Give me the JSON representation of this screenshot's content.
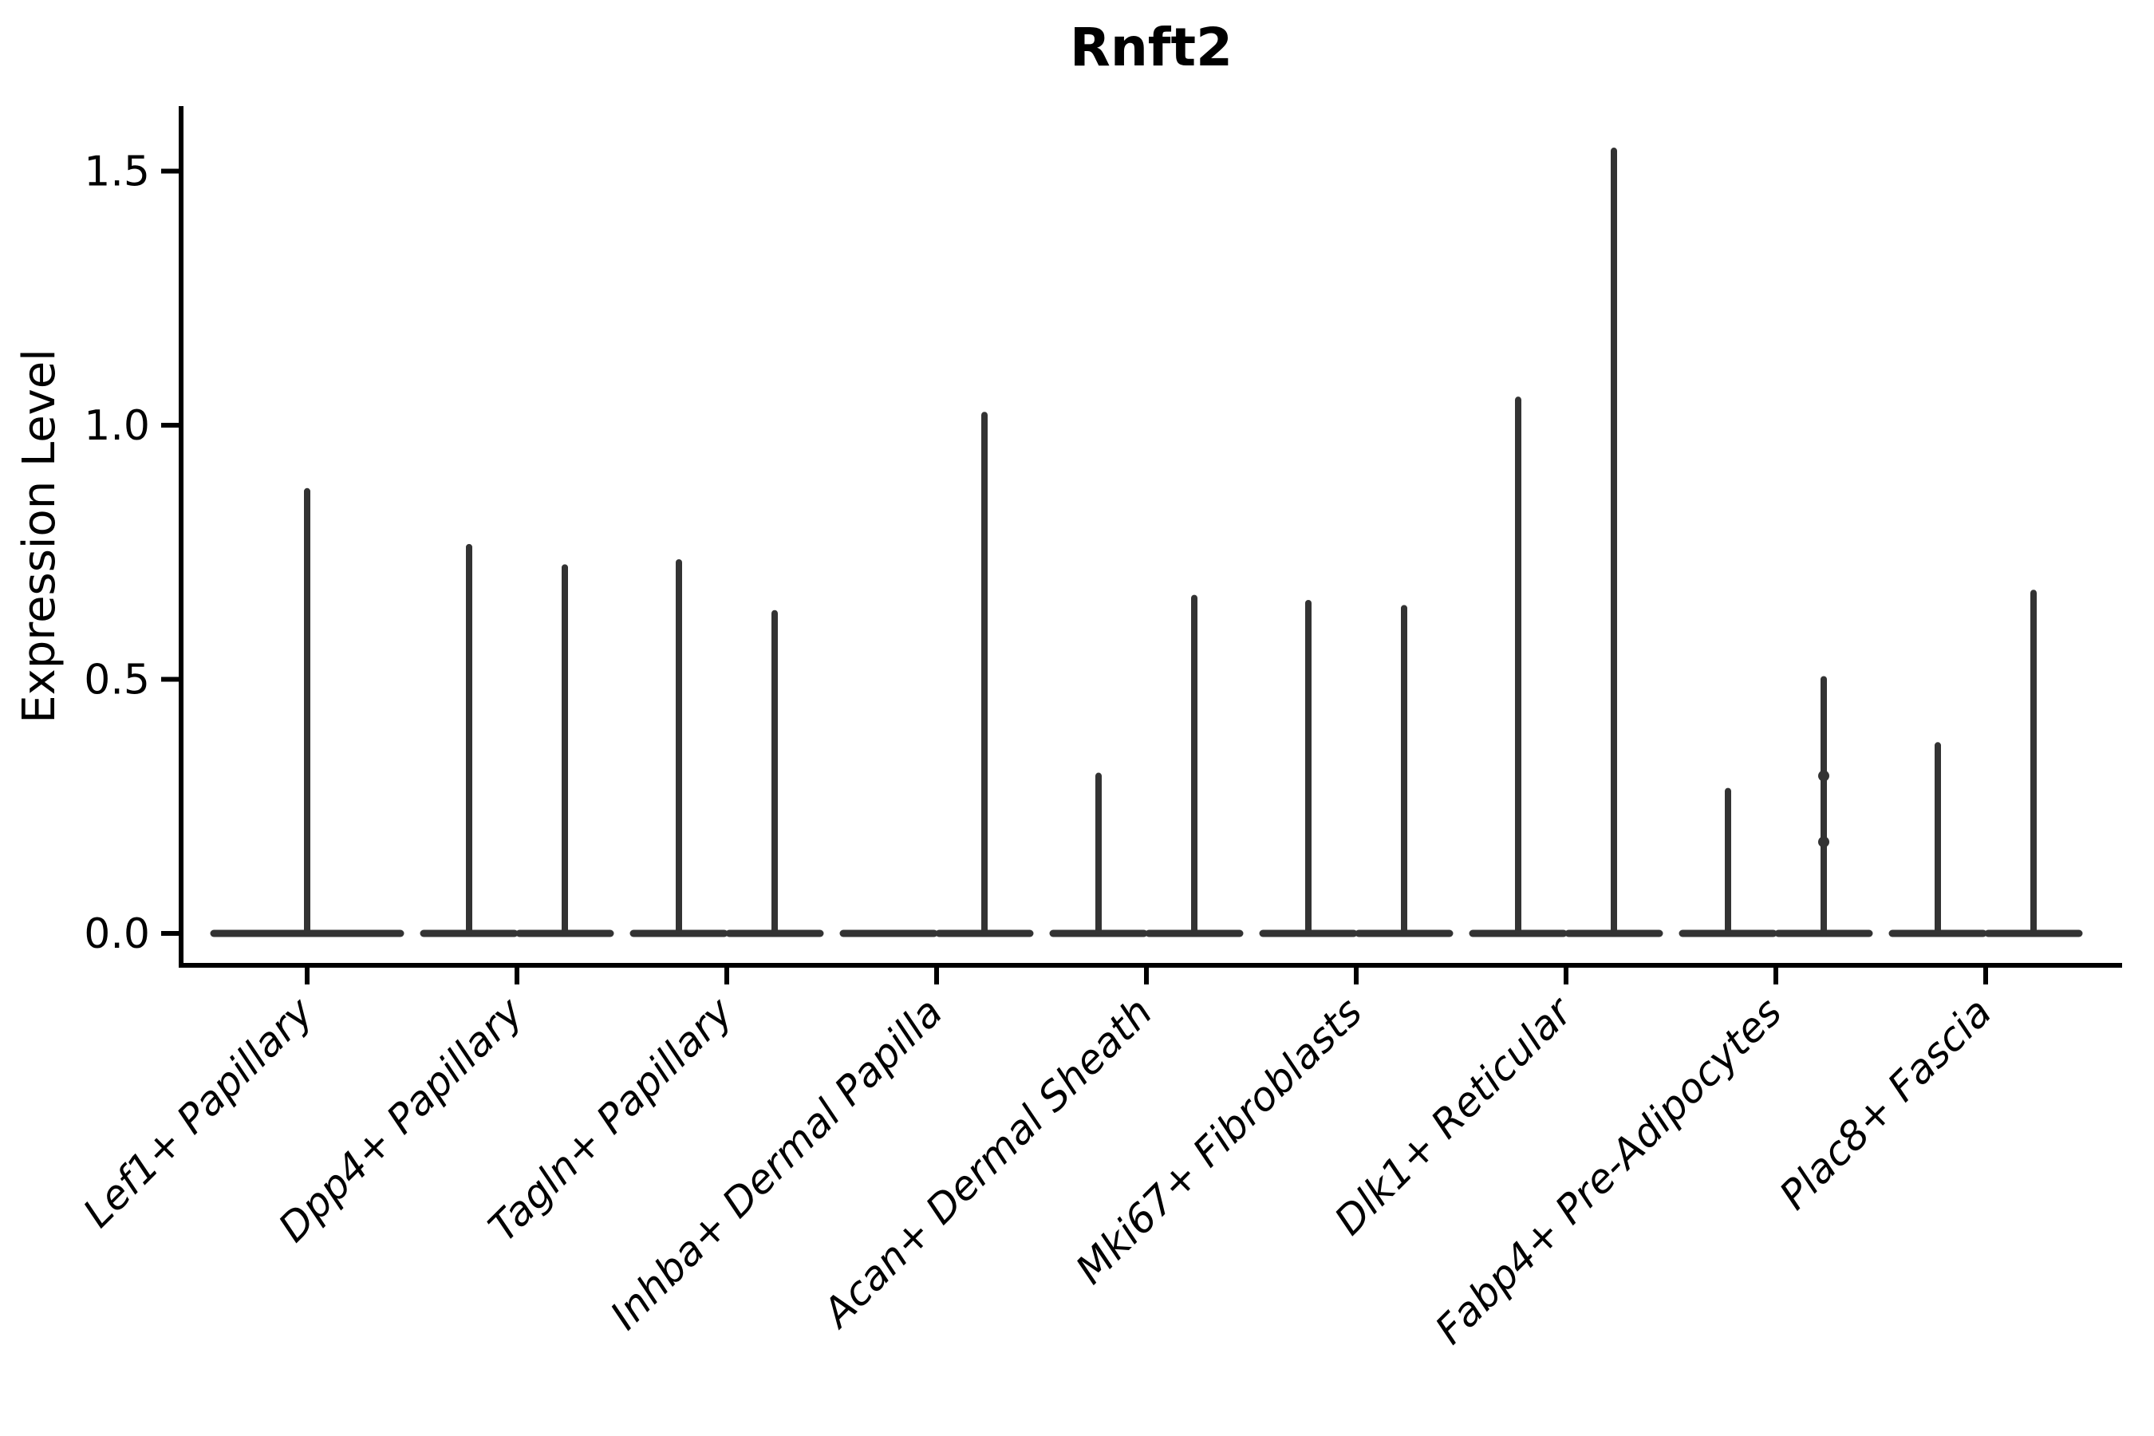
{
  "figure": {
    "title": "Rnft2",
    "ylabel": "Expression Level",
    "background_color": "#ffffff",
    "axis_color": "#000000",
    "violin_color": "#333333"
  },
  "chart_data": {
    "type": "violin",
    "title": "Rnft2",
    "xlabel": "",
    "ylabel": "Expression Level",
    "ylim": [
      -0.06,
      1.63
    ],
    "yticks": [
      0.0,
      0.5,
      1.0,
      1.5
    ],
    "ytick_labels": [
      "0.0",
      "0.5",
      "1.0",
      "1.5"
    ],
    "grid": false,
    "legend": "none",
    "xtick_rotation_deg": 45,
    "categories": [
      "Lef1+ Papillary",
      "Dpp4+ Papillary",
      "Tagln+ Papillary",
      "Inhba+ Dermal Papilla",
      "Acan+ Dermal Sheath",
      "Mki67+ Fibroblasts",
      "Dlk1+ Reticular",
      "Fabp4+ Pre-Adipocytes",
      "Plac8+ Fascia"
    ],
    "violins": [
      {
        "category": "Lef1+ Papillary",
        "shapes": [
          {
            "side": "full",
            "max": 0.87
          }
        ]
      },
      {
        "category": "Dpp4+ Papillary",
        "shapes": [
          {
            "side": "left",
            "max": 0.76
          },
          {
            "side": "right",
            "max": 0.72
          }
        ]
      },
      {
        "category": "Tagln+ Papillary",
        "shapes": [
          {
            "side": "left",
            "max": 0.73
          },
          {
            "side": "right",
            "max": 0.63
          }
        ]
      },
      {
        "category": "Inhba+ Dermal Papilla",
        "shapes": [
          {
            "side": "left",
            "max": 0.0
          },
          {
            "side": "right",
            "max": 1.02
          }
        ]
      },
      {
        "category": "Acan+ Dermal Sheath",
        "shapes": [
          {
            "side": "left",
            "max": 0.31
          },
          {
            "side": "right",
            "max": 0.66
          }
        ]
      },
      {
        "category": "Mki67+ Fibroblasts",
        "shapes": [
          {
            "side": "left",
            "max": 0.65
          },
          {
            "side": "right",
            "max": 0.64
          }
        ]
      },
      {
        "category": "Dlk1+ Reticular",
        "shapes": [
          {
            "side": "left",
            "max": 1.05
          },
          {
            "side": "right",
            "max": 1.54
          }
        ]
      },
      {
        "category": "Fabp4+ Pre-Adipocytes",
        "shapes": [
          {
            "side": "left",
            "max": 0.28
          },
          {
            "side": "right",
            "max": 0.5,
            "bumps": [
              0.31,
              0.18
            ]
          }
        ]
      },
      {
        "category": "Plac8+ Fascia",
        "shapes": [
          {
            "side": "left",
            "max": 0.37
          },
          {
            "side": "right",
            "max": 0.67
          }
        ]
      }
    ]
  }
}
